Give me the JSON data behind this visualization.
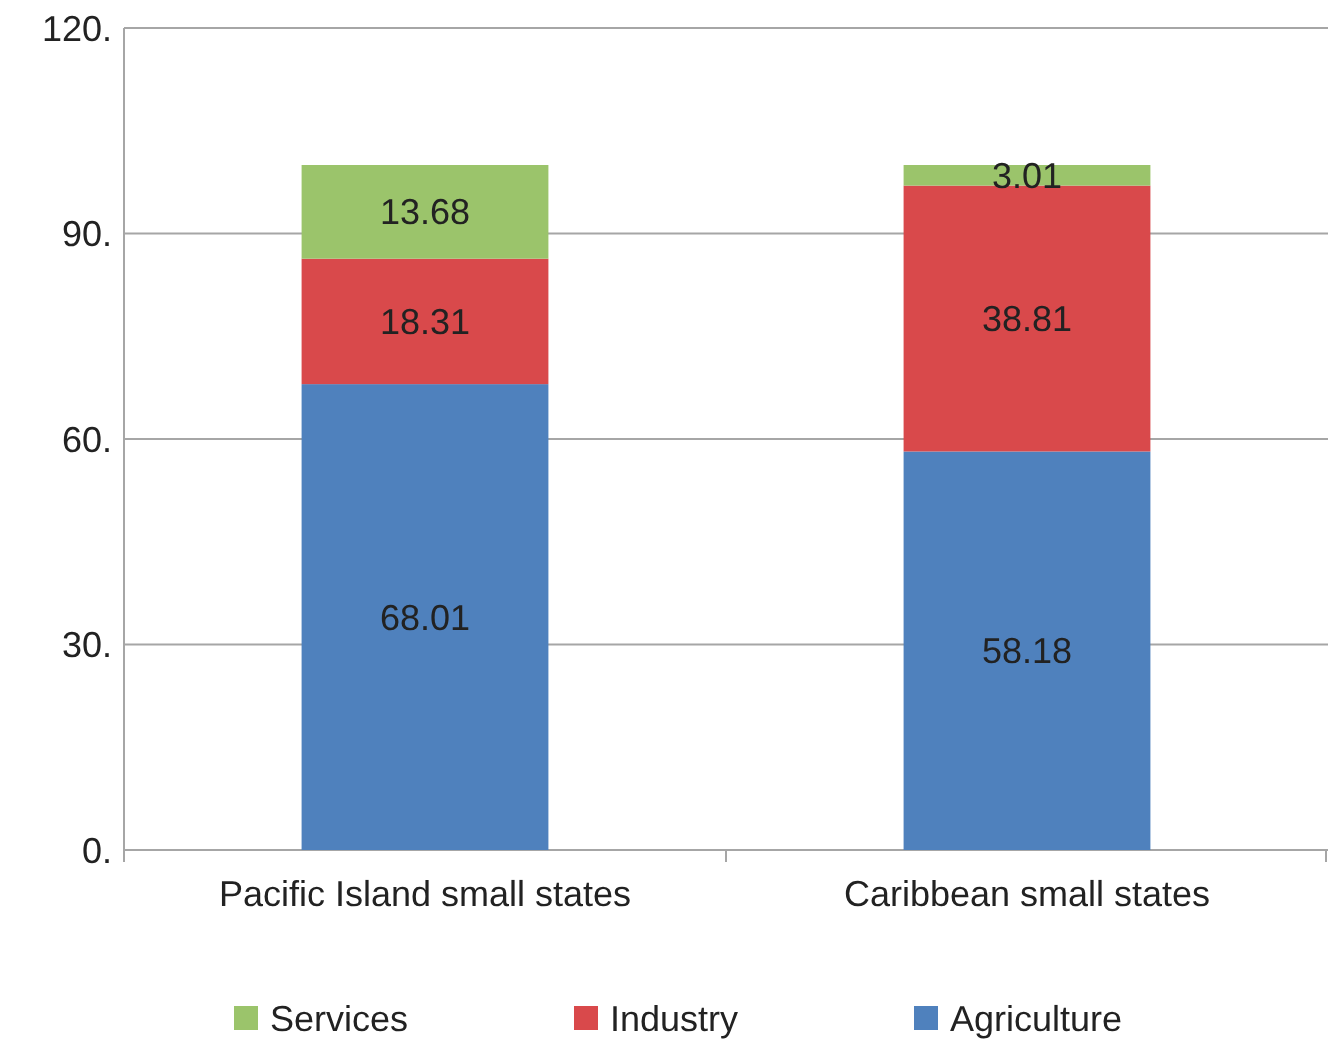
{
  "chart_data": {
    "type": "bar",
    "stacked": true,
    "categories": [
      "Pacific Island small states",
      "Caribbean small states"
    ],
    "series": [
      {
        "name": "Agriculture",
        "color": "#4f81bd",
        "values": [
          68.01,
          58.18
        ]
      },
      {
        "name": "Industry",
        "color": "#d9494b",
        "values": [
          18.31,
          38.81
        ]
      },
      {
        "name": "Services",
        "color": "#9bc46b",
        "values": [
          13.68,
          3.01
        ]
      }
    ],
    "ylim": [
      0,
      120
    ],
    "yticks": [
      {
        "value": 0,
        "label": "0."
      },
      {
        "value": 30,
        "label": "30."
      },
      {
        "value": 60,
        "label": "60."
      },
      {
        "value": 90,
        "label": "90."
      },
      {
        "value": 120,
        "label": "120."
      }
    ],
    "grid": "y",
    "legend": "bottom",
    "data_labels": true
  }
}
